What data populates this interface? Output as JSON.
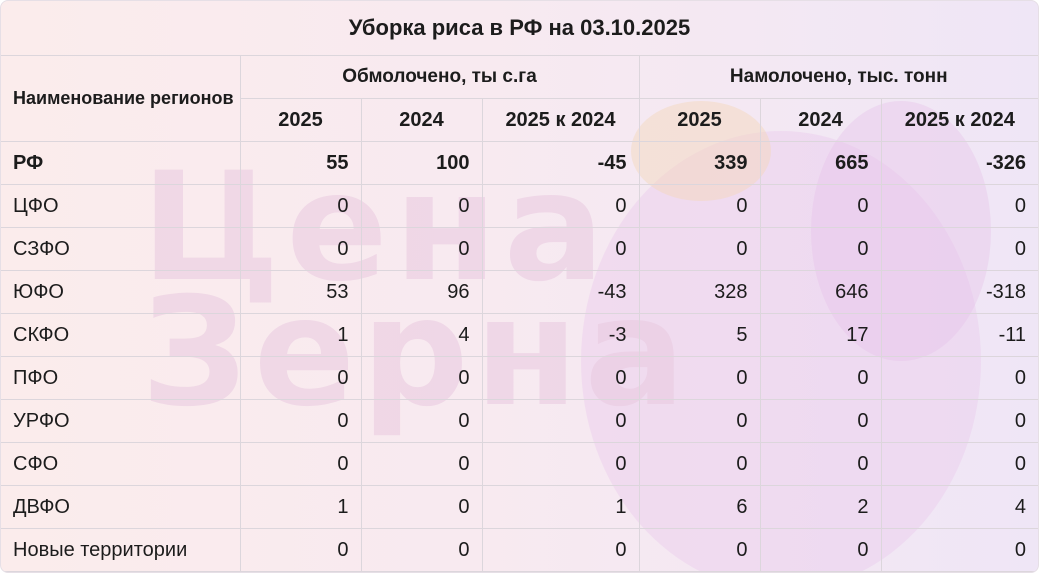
{
  "title": "Уборка риса в РФ на 03.10.2025",
  "watermark": [
    "Цена",
    "Зерна"
  ],
  "header": {
    "region_col": "Наименование регионов",
    "group1": "Обмолочено, ты с.га",
    "group2": "Намолочено, тыс. тонн",
    "subcols": [
      "2025",
      "2024",
      "2025 к 2024",
      "2025",
      "2024",
      "2025 к 2024"
    ]
  },
  "rows": [
    {
      "name": "РФ",
      "v": [
        "55",
        "100",
        "-45",
        "339",
        "665",
        "-326"
      ]
    },
    {
      "name": "ЦФО",
      "v": [
        "0",
        "0",
        "0",
        "0",
        "0",
        "0"
      ]
    },
    {
      "name": "СЗФО",
      "v": [
        "0",
        "0",
        "0",
        "0",
        "0",
        "0"
      ]
    },
    {
      "name": "ЮФО",
      "v": [
        "53",
        "96",
        "-43",
        "328",
        "646",
        "-318"
      ]
    },
    {
      "name": "СКФО",
      "v": [
        "1",
        "4",
        "-3",
        "5",
        "17",
        "-11"
      ]
    },
    {
      "name": "ПФО",
      "v": [
        "0",
        "0",
        "0",
        "0",
        "0",
        "0"
      ]
    },
    {
      "name": "УРФО",
      "v": [
        "0",
        "0",
        "0",
        "0",
        "0",
        "0"
      ]
    },
    {
      "name": "СФО",
      "v": [
        "0",
        "0",
        "0",
        "0",
        "0",
        "0"
      ]
    },
    {
      "name": "ДВФО",
      "v": [
        "1",
        "0",
        "1",
        "6",
        "2",
        "4"
      ]
    },
    {
      "name": "Новые территории",
      "v": [
        "0",
        "0",
        "0",
        "0",
        "0",
        "0"
      ]
    }
  ]
}
